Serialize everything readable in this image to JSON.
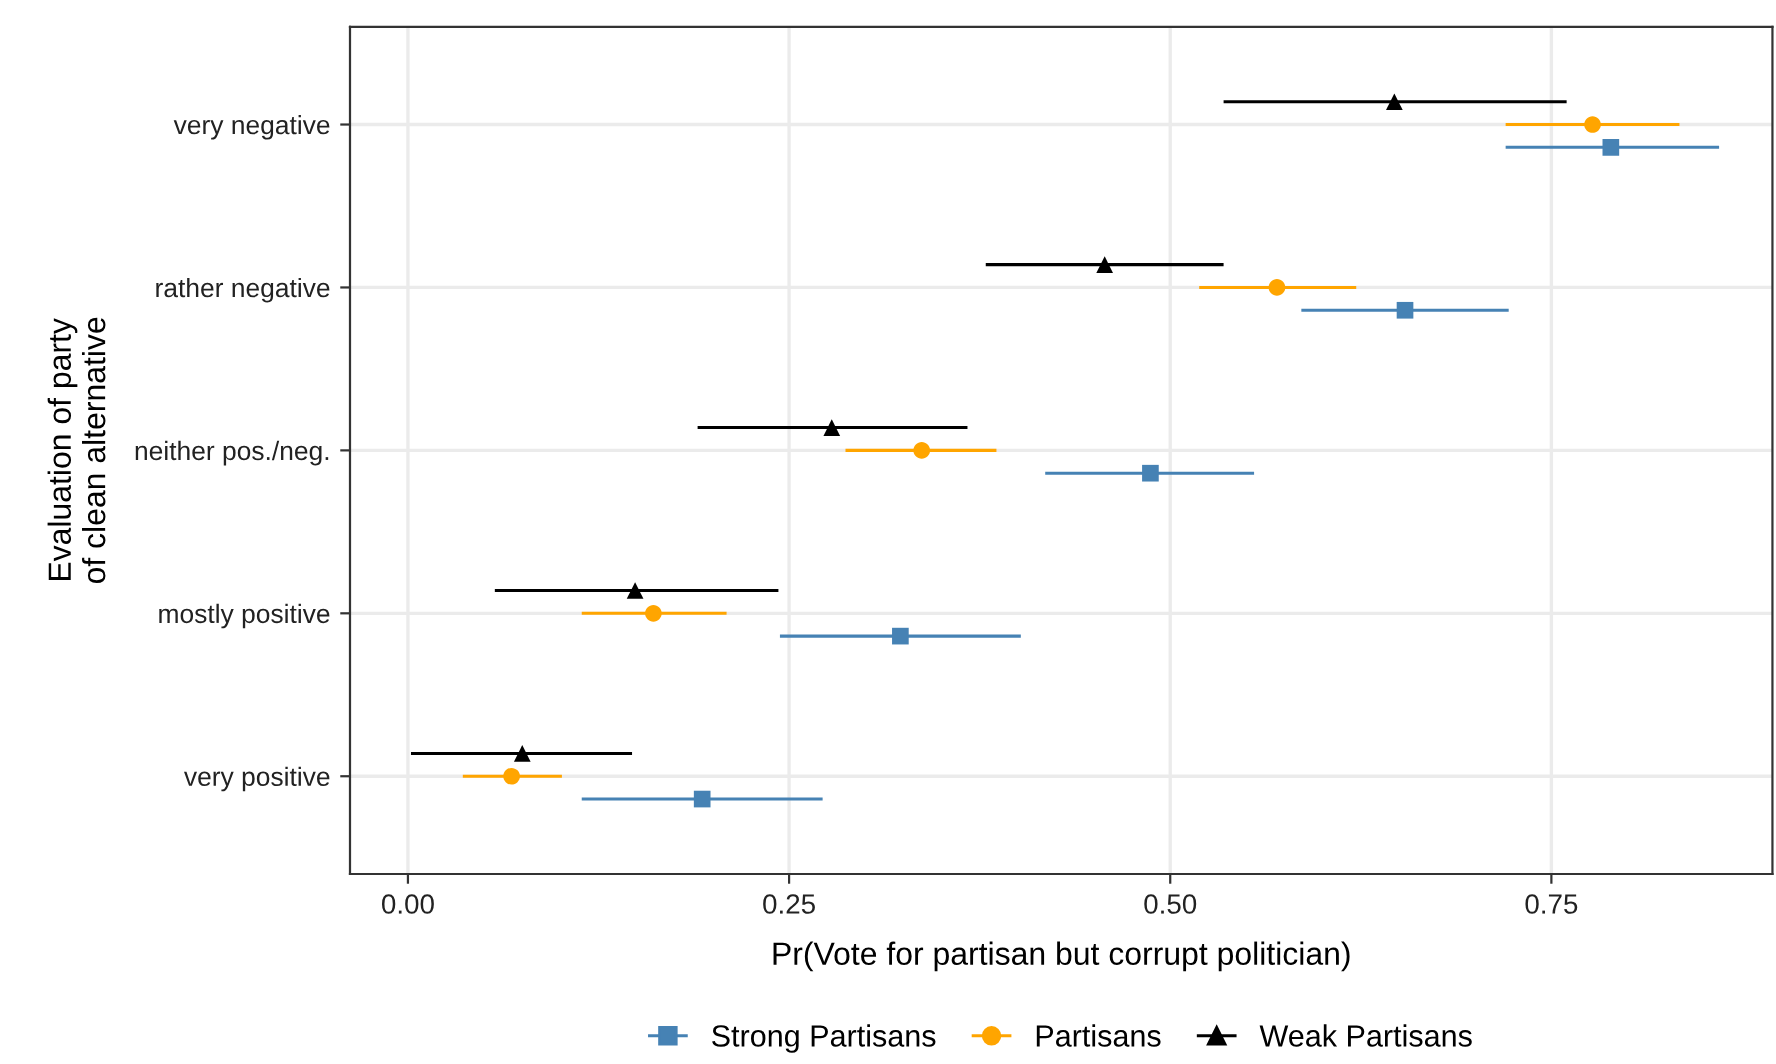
{
  "chart_data": {
    "type": "scatter",
    "orientation": "horizontal",
    "xlabel": "Pr(Vote for partisan but corrupt politician)",
    "ylabel": "Evaluation of party\nof clean alternative",
    "categories": [
      "very negative",
      "rather negative",
      "neither pos./neg.",
      "mostly positive",
      "very positive"
    ],
    "xlim": [
      -0.038,
      0.895
    ],
    "xticks": [
      {
        "value": 0,
        "label": "0.00"
      },
      {
        "value": 0.25,
        "label": "0.25"
      },
      {
        "value": 0.5,
        "label": "0.50"
      },
      {
        "value": 0.75,
        "label": "0.75"
      }
    ],
    "grid": true,
    "legend": "bottom",
    "series": [
      {
        "name": "Strong Partisans",
        "color": "#4682b4",
        "marker": "square",
        "values": [
          0.789,
          0.654,
          0.487,
          0.323,
          0.193
        ],
        "errors": [
          [
            0.72,
            0.86
          ],
          [
            0.586,
            0.722
          ],
          [
            0.418,
            0.555
          ],
          [
            0.244,
            0.402
          ],
          [
            0.114,
            0.272
          ]
        ]
      },
      {
        "name": "Partisans",
        "color": "#ffa500",
        "marker": "circle",
        "values": [
          0.777,
          0.57,
          0.337,
          0.161,
          0.068
        ],
        "errors": [
          [
            0.72,
            0.834
          ],
          [
            0.519,
            0.622
          ],
          [
            0.287,
            0.386
          ],
          [
            0.114,
            0.209
          ],
          [
            0.036,
            0.101
          ]
        ]
      },
      {
        "name": "Weak Partisans",
        "color": "#000000",
        "marker": "triangle",
        "values": [
          0.647,
          0.457,
          0.278,
          0.149,
          0.075
        ],
        "errors": [
          [
            0.535,
            0.76
          ],
          [
            0.379,
            0.535
          ],
          [
            0.19,
            0.367
          ],
          [
            0.057,
            0.243
          ],
          [
            0.002,
            0.147
          ]
        ]
      }
    ]
  }
}
